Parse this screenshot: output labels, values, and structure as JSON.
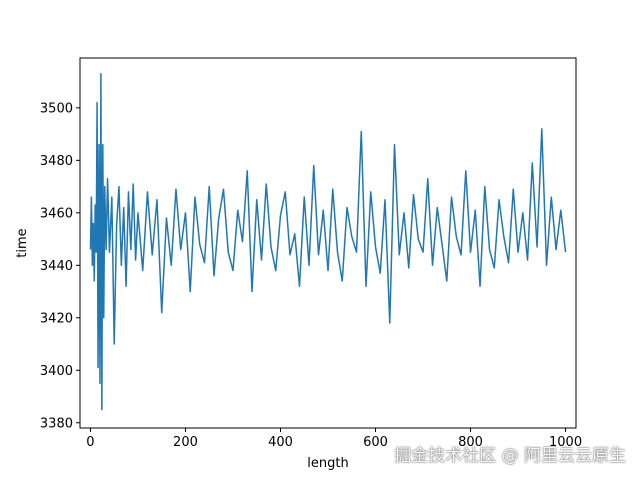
{
  "chart_data": {
    "type": "line",
    "title": "",
    "xlabel": "length",
    "ylabel": "time",
    "xlim": [
      -22,
      1022
    ],
    "ylim": [
      3378,
      3519
    ],
    "xticks": [
      0,
      200,
      400,
      600,
      800,
      1000
    ],
    "yticks": [
      3380,
      3400,
      3420,
      3440,
      3460,
      3480,
      3500
    ],
    "grid": false,
    "legend": "none",
    "series": [
      {
        "color": "#1f77b4",
        "x": [
          0,
          2,
          4,
          6,
          8,
          10,
          12,
          14,
          16,
          18,
          20,
          22,
          24,
          26,
          28,
          30,
          33,
          36,
          40,
          45,
          50,
          55,
          60,
          65,
          70,
          75,
          80,
          85,
          90,
          95,
          100,
          110,
          120,
          130,
          140,
          150,
          160,
          170,
          180,
          190,
          200,
          210,
          220,
          230,
          240,
          250,
          260,
          270,
          280,
          290,
          300,
          310,
          320,
          330,
          340,
          350,
          360,
          370,
          380,
          390,
          400,
          410,
          420,
          430,
          440,
          450,
          460,
          470,
          480,
          490,
          500,
          510,
          520,
          530,
          540,
          550,
          560,
          570,
          580,
          590,
          600,
          610,
          620,
          630,
          640,
          650,
          660,
          670,
          680,
          690,
          700,
          710,
          720,
          730,
          740,
          750,
          760,
          770,
          780,
          790,
          800,
          810,
          820,
          830,
          840,
          850,
          860,
          870,
          880,
          890,
          900,
          910,
          920,
          930,
          940,
          950,
          960,
          970,
          980,
          990,
          1000
        ],
        "values": [
          3446,
          3466,
          3440,
          3456,
          3434,
          3463,
          3445,
          3502,
          3401,
          3486,
          3395,
          3513,
          3385,
          3486,
          3420,
          3470,
          3446,
          3473,
          3445,
          3466,
          3410,
          3455,
          3470,
          3440,
          3462,
          3432,
          3468,
          3446,
          3471,
          3442,
          3460,
          3438,
          3468,
          3444,
          3465,
          3422,
          3458,
          3440,
          3469,
          3446,
          3460,
          3430,
          3466,
          3448,
          3441,
          3470,
          3436,
          3458,
          3469,
          3445,
          3438,
          3461,
          3449,
          3476,
          3430,
          3465,
          3442,
          3471,
          3447,
          3438,
          3459,
          3468,
          3444,
          3452,
          3432,
          3466,
          3440,
          3478,
          3444,
          3461,
          3438,
          3469,
          3445,
          3434,
          3462,
          3451,
          3445,
          3491,
          3432,
          3468,
          3447,
          3437,
          3465,
          3418,
          3486,
          3444,
          3460,
          3439,
          3467,
          3450,
          3445,
          3473,
          3440,
          3462,
          3448,
          3434,
          3466,
          3451,
          3444,
          3476,
          3445,
          3461,
          3432,
          3470,
          3446,
          3439,
          3465,
          3451,
          3441,
          3469,
          3445,
          3460,
          3442,
          3479,
          3447,
          3492,
          3440,
          3466,
          3446,
          3461,
          3445
        ]
      }
    ]
  },
  "watermark": "掘金技术社区 @ 阿里云云原生"
}
